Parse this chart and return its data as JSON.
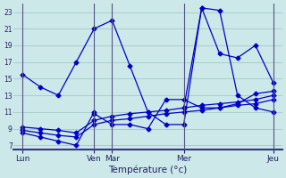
{
  "xlabel": "Température (°c)",
  "background_color": "#cce8e8",
  "grid_color": "#aacccc",
  "line_color": "#0000cc",
  "yticks": [
    7,
    9,
    11,
    13,
    15,
    17,
    19,
    21,
    23
  ],
  "ylim": [
    6.5,
    24.0
  ],
  "day_ticks": [
    0,
    4,
    5,
    9,
    14
  ],
  "day_labels": [
    "Lun",
    "Ven",
    "Mar",
    "Mer",
    "Jeu"
  ],
  "xlim": [
    -0.5,
    14.5
  ],
  "series1_x": [
    0,
    1,
    2,
    3,
    4,
    5,
    6,
    7,
    8,
    9,
    10,
    11,
    12,
    13,
    14
  ],
  "series1_y": [
    15.5,
    14.0,
    13.0,
    17.0,
    21.0,
    22.0,
    16.5,
    11.0,
    9.5,
    9.5,
    23.5,
    23.2,
    13.0,
    11.5,
    11.0
  ],
  "series2_x": [
    0,
    1,
    2,
    3,
    4,
    4,
    5,
    6,
    7,
    8,
    9,
    10,
    11,
    12,
    13,
    14
  ],
  "series2_y": [
    8.5,
    8.0,
    7.5,
    7.0,
    11.0,
    10.8,
    9.5,
    9.5,
    9.0,
    12.5,
    12.5,
    11.5,
    11.5,
    12.0,
    13.2,
    13.5
  ],
  "series3_x": [
    0,
    1,
    2,
    3,
    4,
    5,
    6,
    7,
    8,
    9,
    10,
    11,
    12,
    13,
    14
  ],
  "series3_y": [
    8.8,
    8.5,
    8.2,
    8.0,
    9.5,
    10.0,
    10.2,
    10.5,
    10.8,
    11.0,
    11.2,
    11.5,
    11.8,
    12.0,
    12.5
  ],
  "series4_x": [
    0,
    1,
    2,
    3,
    4,
    5,
    6,
    7,
    8,
    9,
    10,
    11,
    12,
    13,
    14
  ],
  "series4_y": [
    9.2,
    9.0,
    8.8,
    8.5,
    10.0,
    10.5,
    10.8,
    11.0,
    11.2,
    11.5,
    11.8,
    12.0,
    12.2,
    12.5,
    13.0
  ],
  "series5_x": [
    9,
    10,
    11,
    12,
    13,
    14
  ],
  "series5_y": [
    11.5,
    23.5,
    18.0,
    17.5,
    19.0,
    14.5
  ]
}
